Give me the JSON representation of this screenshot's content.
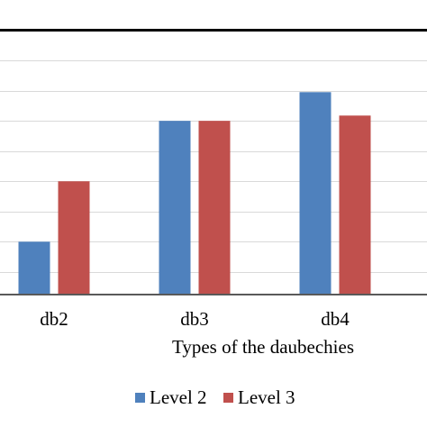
{
  "chart_data": {
    "type": "bar",
    "categories": [
      "db2",
      "db3",
      "db4"
    ],
    "series": [
      {
        "name": "Level 2",
        "values": [
          0.82,
          0.9,
          0.919
        ],
        "color": "#4f81bd"
      },
      {
        "name": "Level 3",
        "values": [
          0.86,
          0.9,
          0.9035
        ],
        "color": "#c0504d"
      }
    ],
    "xlabel": "Types of the daubechies",
    "ylim": [
      0.785,
      0.98
    ],
    "gridlines": [
      0.8,
      0.82,
      0.84,
      0.86,
      0.88,
      0.9,
      0.92,
      0.94,
      0.96
    ],
    "reference_line": 0.96,
    "grid": true,
    "legend_position": "bottom"
  }
}
